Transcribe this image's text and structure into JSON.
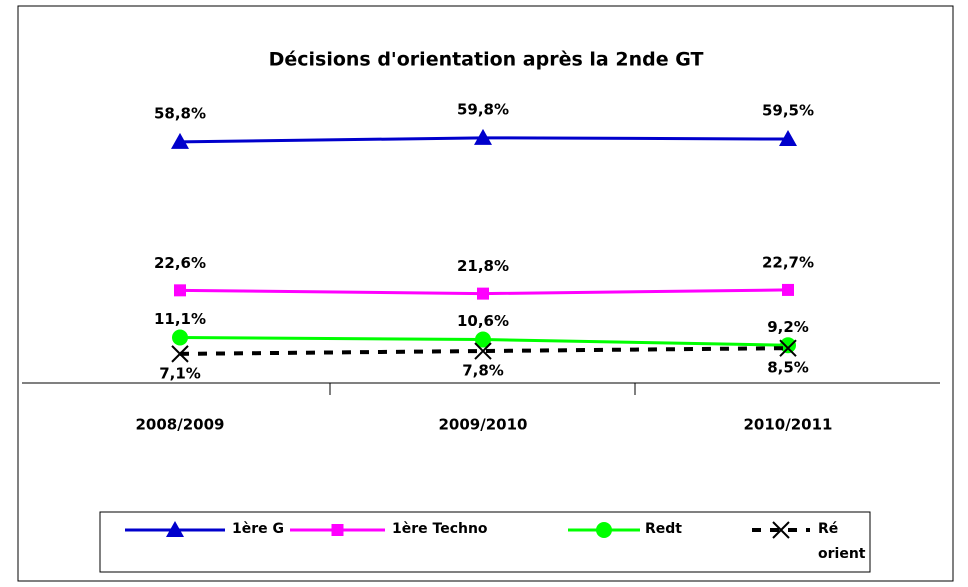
{
  "chart_data": {
    "type": "line",
    "title": "Décisions d'orientation après la 2nde GT",
    "categories": [
      "2008/2009",
      "2009/2010",
      "2010/2011"
    ],
    "ylim": [
      0,
      70
    ],
    "series": [
      {
        "name": "1ère G",
        "color": "#0000cc",
        "marker": "triangle",
        "values": [
          58.8,
          59.8,
          59.5
        ],
        "value_labels": [
          "58,8%",
          "59,8%",
          "59,5%"
        ]
      },
      {
        "name": "1ère Techno",
        "color": "#ff00ff",
        "marker": "square",
        "values": [
          22.6,
          21.8,
          22.7
        ],
        "value_labels": [
          "22,6%",
          "21,8%",
          "22,7%"
        ]
      },
      {
        "name": "Redt",
        "color": "#00ff00",
        "marker": "circle",
        "values": [
          11.1,
          10.6,
          9.2
        ],
        "value_labels": [
          "11,1%",
          "10,6%",
          "9,2%"
        ]
      },
      {
        "name": "Ré orient",
        "color": "#000000",
        "marker": "x",
        "dashed": true,
        "values": [
          7.1,
          7.8,
          8.5
        ],
        "value_labels": [
          "7,1%",
          "7,8%",
          "8,5%"
        ]
      }
    ]
  }
}
